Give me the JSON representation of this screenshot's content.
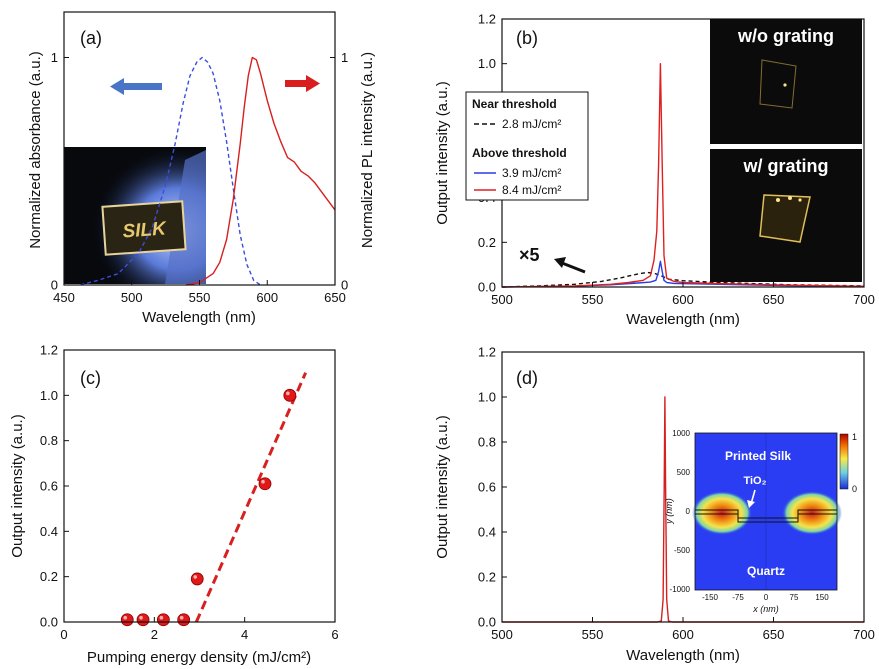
{
  "chart_data": [
    {
      "id": "a",
      "panel_label": "(a)",
      "type": "line",
      "xlabel": "Wavelength (nm)",
      "ylabel_left": "Normalized absorbance (a.u.)",
      "ylabel_right": "Normalized PL intensity (a.u.)",
      "xlim": [
        450,
        650
      ],
      "xticks": [
        "450",
        "500",
        "550",
        "600",
        "650"
      ],
      "ylim_left": [
        0,
        1.2
      ],
      "yticks_left": [
        "0",
        "1"
      ],
      "yticks_right": [
        "0",
        "1"
      ],
      "inset_photo_text": "SILK",
      "series": [
        {
          "color": "#3a4de0",
          "style": "dashed",
          "axis": "left",
          "x": [
            462,
            475,
            490,
            505,
            515,
            525,
            532,
            538,
            543,
            548,
            552,
            556,
            560,
            565,
            570,
            575,
            580,
            585,
            590,
            595
          ],
          "y": [
            0.0,
            0.02,
            0.05,
            0.14,
            0.25,
            0.44,
            0.62,
            0.8,
            0.92,
            0.98,
            1.0,
            0.98,
            0.93,
            0.81,
            0.63,
            0.42,
            0.22,
            0.09,
            0.02,
            0.0
          ]
        },
        {
          "color": "#d62020",
          "style": "solid",
          "axis": "right",
          "x": [
            540,
            550,
            560,
            565,
            570,
            575,
            580,
            583,
            586,
            589,
            592,
            595,
            600,
            605,
            610,
            615,
            620,
            625,
            630,
            635,
            640,
            645,
            650
          ],
          "y": [
            0.0,
            0.01,
            0.05,
            0.1,
            0.2,
            0.38,
            0.62,
            0.78,
            0.92,
            1.0,
            0.99,
            0.93,
            0.81,
            0.71,
            0.63,
            0.56,
            0.54,
            0.5,
            0.48,
            0.45,
            0.41,
            0.37,
            0.33
          ]
        }
      ]
    },
    {
      "id": "b",
      "panel_label": "(b)",
      "type": "line",
      "xlabel": "Wavelength (nm)",
      "ylabel": "Output intensity (a.u.)",
      "xlim": [
        500,
        700
      ],
      "xticks": [
        "500",
        "550",
        "600",
        "650",
        "700"
      ],
      "ylim": [
        0,
        1.2
      ],
      "yticks": [
        "0.0",
        "0.2",
        "0.4",
        "0.6",
        "0.8",
        "1.0",
        "1.2"
      ],
      "legend": {
        "group1_title": "Near threshold",
        "group1_entries": [
          "2.8 mJ/cm²"
        ],
        "group2_title": "Above threshold",
        "group2_entries": [
          "3.9 mJ/cm²",
          "8.4 mJ/cm²"
        ]
      },
      "annotation": "×5",
      "inset_top_text": "w/o grating",
      "inset_bottom_text": "w/ grating",
      "series": [
        {
          "name": "2.8 mJ/cm²",
          "color": "#111111",
          "style": "dashed",
          "x": [
            500,
            520,
            540,
            555,
            565,
            575,
            580,
            584,
            588,
            592,
            600,
            620,
            660,
            700
          ],
          "y": [
            0.0,
            0.005,
            0.012,
            0.025,
            0.04,
            0.058,
            0.065,
            0.062,
            0.05,
            0.035,
            0.028,
            0.02,
            0.01,
            0.005
          ]
        },
        {
          "name": "3.9 mJ/cm²",
          "color": "#2a3de0",
          "style": "solid",
          "x": [
            500,
            540,
            560,
            575,
            582,
            585,
            586.5,
            587.5,
            588.5,
            589.5,
            591,
            595,
            620,
            660,
            700
          ],
          "y": [
            0.0,
            0.004,
            0.01,
            0.018,
            0.022,
            0.03,
            0.07,
            0.115,
            0.07,
            0.03,
            0.02,
            0.016,
            0.012,
            0.006,
            0.003
          ]
        },
        {
          "name": "8.4 mJ/cm²",
          "color": "#e02020",
          "style": "solid",
          "x": [
            500,
            540,
            560,
            570,
            578,
            582,
            584,
            585.5,
            586.5,
            587.5,
            588.5,
            589.5,
            591,
            595,
            600,
            620,
            660,
            700
          ],
          "y": [
            0.0,
            0.005,
            0.012,
            0.02,
            0.03,
            0.05,
            0.12,
            0.25,
            0.55,
            1.0,
            0.55,
            0.14,
            0.04,
            0.025,
            0.02,
            0.015,
            0.008,
            0.003
          ]
        }
      ]
    },
    {
      "id": "c",
      "panel_label": "(c)",
      "type": "scatter",
      "xlabel": "Pumping energy density (mJ/cm²)",
      "ylabel": "Output intensity (a.u.)",
      "xlim": [
        0,
        6
      ],
      "xticks": [
        "0",
        "2",
        "4",
        "6"
      ],
      "ylim": [
        0,
        1.2
      ],
      "yticks": [
        "0.0",
        "0.2",
        "0.4",
        "0.6",
        "0.8",
        "1.0",
        "1.2"
      ],
      "points": {
        "color": "#e01818",
        "x": [
          1.4,
          1.75,
          2.2,
          2.65,
          2.95,
          4.45,
          5.0
        ],
        "y": [
          0.01,
          0.01,
          0.01,
          0.01,
          0.19,
          0.61,
          1.0
        ]
      },
      "fit": {
        "color": "#d82020",
        "style": "dashed",
        "x": [
          2.93,
          5.35
        ],
        "y": [
          0.0,
          1.1
        ]
      }
    },
    {
      "id": "d",
      "panel_label": "(d)",
      "type": "line",
      "xlabel": "Wavelength (nm)",
      "ylabel": "Output intensity (a.u.)",
      "xlim": [
        500,
        700
      ],
      "xticks": [
        "500",
        "550",
        "600",
        "650",
        "700"
      ],
      "ylim": [
        0,
        1.2
      ],
      "yticks": [
        "0.0",
        "0.2",
        "0.4",
        "0.6",
        "0.8",
        "1.0",
        "1.2"
      ],
      "series": [
        {
          "color": "#d62020",
          "style": "solid",
          "x": [
            500,
            586,
            588,
            589,
            589.6,
            590,
            590.4,
            591,
            592,
            594,
            700
          ],
          "y": [
            0.0,
            0.0,
            0.005,
            0.1,
            0.6,
            1.0,
            0.6,
            0.1,
            0.005,
            0.0,
            0.0
          ]
        }
      ],
      "inset": {
        "xlabel": "x (nm)",
        "ylabel": "y (nm)",
        "xticks": [
          "-150",
          "-75",
          "0",
          "75",
          "150"
        ],
        "yticks": [
          "1000",
          "500",
          "0",
          "-500",
          "-1000"
        ],
        "colorbar_ticks": [
          "1",
          "0"
        ],
        "label_top": "Printed Silk",
        "label_middle": "TiO₂",
        "label_bottom": "Quartz"
      }
    }
  ]
}
